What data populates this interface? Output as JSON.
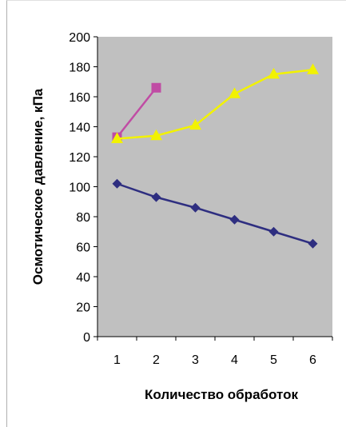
{
  "chart_data": {
    "type": "line",
    "title": "",
    "xlabel": "Количество обработок",
    "ylabel": "Осмотическое давление, кПа",
    "x": [
      1,
      2,
      3,
      4,
      5,
      6
    ],
    "xlim": [
      0.5,
      6.5
    ],
    "ylim": [
      0,
      200
    ],
    "yticks": [
      0,
      20,
      40,
      60,
      80,
      100,
      120,
      140,
      160,
      180,
      200
    ],
    "grid": false,
    "legend": "none",
    "plot_background": "#c0c0c0",
    "series": [
      {
        "color": "#2e2e80",
        "marker": "diamond",
        "x": [
          1,
          2,
          3,
          4,
          5,
          6
        ],
        "values": [
          102,
          93,
          86,
          78,
          70,
          62
        ]
      },
      {
        "color": "#c04ca4",
        "marker": "square",
        "x": [
          1,
          2
        ],
        "values": [
          133,
          166
        ]
      },
      {
        "color": "#f2f200",
        "marker": "triangle",
        "x": [
          1,
          2,
          3,
          4,
          5,
          6
        ],
        "values": [
          132,
          134,
          141,
          162,
          175,
          178
        ]
      }
    ]
  }
}
